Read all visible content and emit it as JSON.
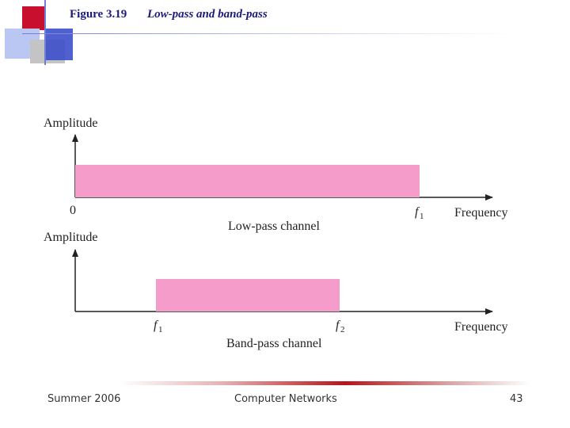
{
  "slide": {
    "figure_number": "Figure 3.19",
    "figure_title": "Low-pass and band-pass"
  },
  "diagram": {
    "low_pass": {
      "y_axis_label": "Amplitude",
      "x_axis_label": "Frequency",
      "origin_label": "0",
      "f1_label": "f",
      "f1_sub": "1",
      "caption": "Low-pass channel",
      "band_color": "#f59ccb"
    },
    "band_pass": {
      "y_axis_label": "Amplitude",
      "x_axis_label": "Frequency",
      "f1_label": "f",
      "f1_sub": "1",
      "f2_label": "f",
      "f2_sub": "2",
      "caption": "Band-pass channel",
      "band_color": "#f59ccb"
    }
  },
  "footer": {
    "left": "Summer 2006",
    "center": "Computer Networks",
    "page_number": "43"
  }
}
